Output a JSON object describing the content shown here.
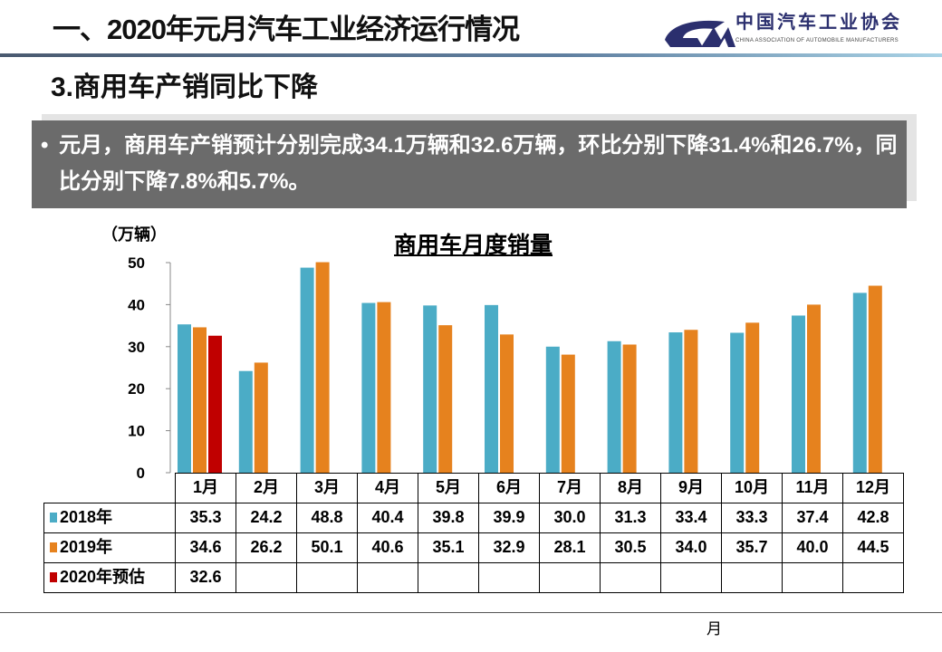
{
  "header": {
    "title": "一、2020年元月汽车工业经济运行情况",
    "logo_cn": "中国汽车工业协会",
    "logo_en": "CHINA ASSOCIATION OF AUTOMOBILE MANUFACTURERS"
  },
  "subtitle": "3.商用车产销同比下降",
  "bullet": "元月，商用车产销预计分别完成34.1万辆和32.6万辆，环比分别下降31.4%和26.7%，同比分别下降7.8%和5.7%。",
  "footer": {
    "page_text": "月"
  },
  "chart_data": {
    "type": "bar",
    "title": "商用车月度销量",
    "ylabel": "（万辆）",
    "ylim": [
      0,
      50
    ],
    "yticks": [
      "0",
      "10",
      "20",
      "30",
      "40",
      "50"
    ],
    "categories": [
      "1月",
      "2月",
      "3月",
      "4月",
      "5月",
      "6月",
      "7月",
      "8月",
      "9月",
      "10月",
      "11月",
      "12月"
    ],
    "series": [
      {
        "name": "2018年",
        "color": "#4bacc6",
        "values": [
          35.3,
          24.2,
          48.8,
          40.4,
          39.8,
          39.9,
          30.0,
          31.3,
          33.4,
          33.3,
          37.4,
          42.8
        ]
      },
      {
        "name": "2019年",
        "color": "#e6821e",
        "values": [
          34.6,
          26.2,
          50.1,
          40.6,
          35.1,
          32.9,
          28.1,
          30.5,
          34.0,
          35.7,
          40.0,
          44.5
        ]
      },
      {
        "name": "2020年预估",
        "color": "#c00000",
        "values": [
          32.6,
          null,
          null,
          null,
          null,
          null,
          null,
          null,
          null,
          null,
          null,
          null
        ]
      }
    ],
    "legend": "data-table"
  }
}
